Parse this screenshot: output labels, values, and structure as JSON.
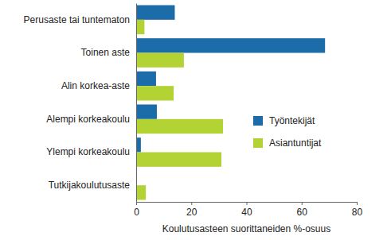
{
  "chart_data": {
    "type": "bar",
    "orientation": "horizontal",
    "categories": [
      "Perusaste tai tuntematon",
      "Toinen aste",
      "Alin korkea-aste",
      "Alempi korkeakoulu",
      "Ylempi korkeakoulu",
      "Tutkijakoulutusaste"
    ],
    "series": [
      {
        "name": "Työntekijät",
        "color": "#1b6ca8",
        "values": [
          14,
          68.5,
          7.2,
          7.5,
          1.7,
          0
        ]
      },
      {
        "name": "Asiantuntijat",
        "color": "#b3d335",
        "values": [
          3,
          17.3,
          13.6,
          31.5,
          30.9,
          3.5
        ]
      }
    ],
    "xlabel": "Koulutusasteen suorittaneiden %-osuus",
    "xlim": [
      0,
      80
    ],
    "xticks": [
      0,
      20,
      40,
      60,
      80
    ],
    "grid": false,
    "legend": "right"
  }
}
